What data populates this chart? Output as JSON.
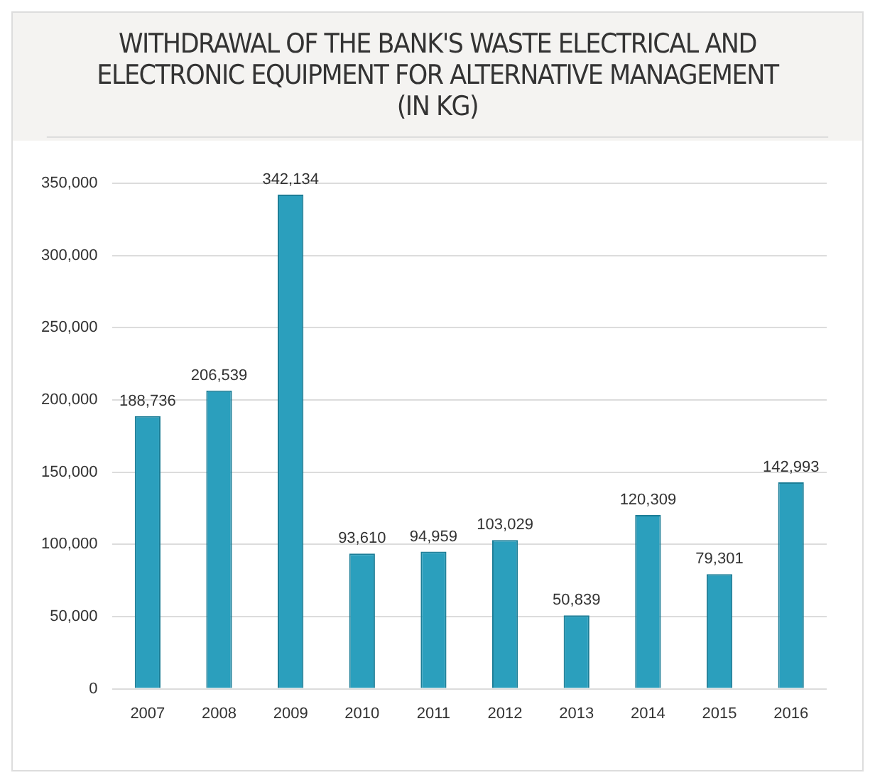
{
  "chart_data": {
    "type": "bar",
    "title": "WITHDRAWAL OF THE BANK'S WASTE ELECTRICAL AND ELECTRONIC EQUIPMENT FOR ALTERNATIVE MANAGEMENT (IN KG)",
    "categories": [
      "2007",
      "2008",
      "2009",
      "2010",
      "2011",
      "2012",
      "2013",
      "2014",
      "2015",
      "2016"
    ],
    "values": [
      188736,
      206539,
      342134,
      93610,
      94959,
      103029,
      50839,
      120309,
      79301,
      142993
    ],
    "value_labels": [
      "188,736",
      "206,539",
      "342,134",
      "93,610",
      "94,959",
      "103,029",
      "50,839",
      "120,309",
      "79,301",
      "142,993"
    ],
    "color": "#2b9fbd",
    "ylim": [
      0,
      350000
    ],
    "yticks": [
      {
        "value": 0,
        "label": "0"
      },
      {
        "value": 50000,
        "label": "50,000"
      },
      {
        "value": 100000,
        "label": "100,000"
      },
      {
        "value": 150000,
        "label": "150,000"
      },
      {
        "value": 200000,
        "label": "200,000"
      },
      {
        "value": 250000,
        "label": "250,000"
      },
      {
        "value": 300000,
        "label": "300,000"
      },
      {
        "value": 350000,
        "label": "350,000"
      }
    ],
    "grid": "y"
  }
}
